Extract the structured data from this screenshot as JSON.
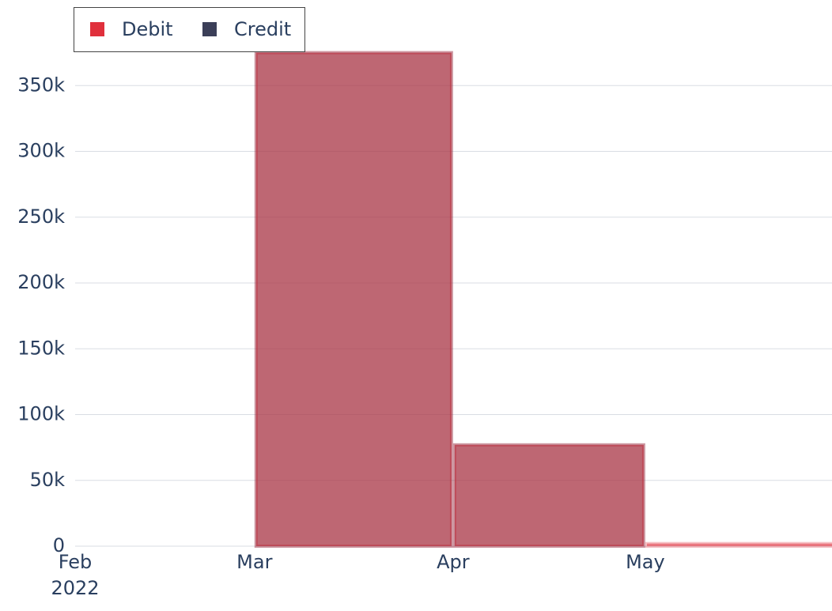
{
  "chart_data": {
    "type": "histogram",
    "bins": [
      "2022-03",
      "2022-04",
      "2022-05",
      "2022-06"
    ],
    "series": [
      {
        "name": "Credit",
        "color": "#3b3f58",
        "values": [
          375000,
          77000,
          0
        ]
      },
      {
        "name": "Debit",
        "color": "#e0303c",
        "values": [
          375000,
          77000,
          2000
        ]
      }
    ],
    "legend_order": [
      "Debit",
      "Credit"
    ],
    "xlim": [
      "2022-02",
      "2022-06"
    ],
    "xticks": [
      {
        "value": "2022-02",
        "label": "Feb 2022"
      },
      {
        "value": "2022-03",
        "label": "Mar"
      },
      {
        "value": "2022-04",
        "label": "Apr"
      },
      {
        "value": "2022-05",
        "label": "May"
      }
    ],
    "ylim": [
      0,
      385000
    ],
    "yticks": [
      0,
      {
        "value": 50000,
        "label": "50k"
      },
      {
        "value": 100000,
        "label": "100k"
      },
      {
        "value": 150000,
        "label": "150k"
      },
      {
        "value": 200000,
        "label": "200k"
      },
      {
        "value": 250000,
        "label": "250k"
      },
      {
        "value": 300000,
        "label": "300k"
      },
      {
        "value": 350000,
        "label": "350k"
      }
    ],
    "grid": true,
    "legend": "top-left"
  }
}
